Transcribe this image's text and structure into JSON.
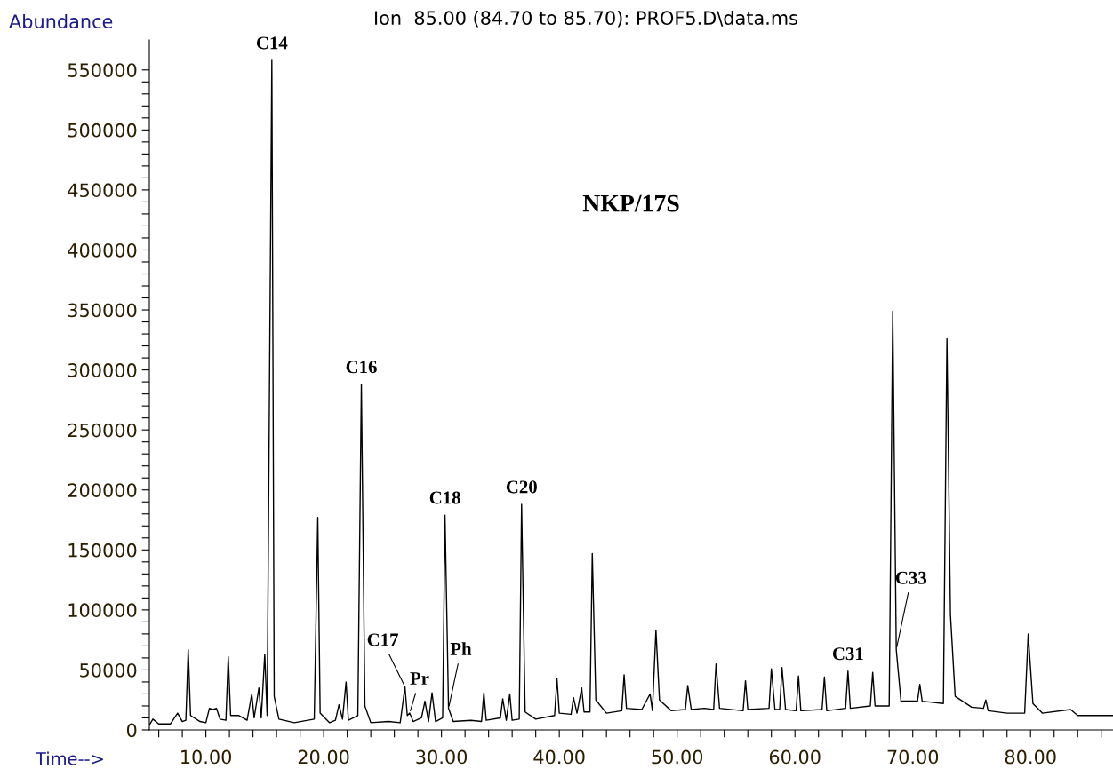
{
  "chart_data": {
    "type": "line",
    "title": "Ion  85.00 (84.70 to 85.70): PROF5.D\\data.ms",
    "xlabel": "Time-->",
    "ylabel": "Abundance",
    "annotations": [
      {
        "text": "C14",
        "x": 15.6,
        "y": 558000
      },
      {
        "text": "C16",
        "x": 23.2,
        "y": 288000
      },
      {
        "text": "C17",
        "x": 26.9,
        "y": 36000
      },
      {
        "text": "Pr",
        "x": 27.3,
        "y": 14000
      },
      {
        "text": "C18",
        "x": 30.3,
        "y": 179000
      },
      {
        "text": "Ph",
        "x": 30.6,
        "y": 18000
      },
      {
        "text": "C20",
        "x": 36.8,
        "y": 188000
      },
      {
        "text": "C31",
        "x": 64.5,
        "y": 49000
      },
      {
        "text": "C33",
        "x": 68.6,
        "y": 67000
      },
      "NKP/17S"
    ],
    "x": [
      5.2,
      5.5,
      6.0,
      7.0,
      7.6,
      8.0,
      8.3,
      8.5,
      8.7,
      9.5,
      10.0,
      10.3,
      10.6,
      10.9,
      11.2,
      11.7,
      11.9,
      12.1,
      12.8,
      13.5,
      13.9,
      14.1,
      14.5,
      14.7,
      15.0,
      15.2,
      15.6,
      15.8,
      16.2,
      17.5,
      19.2,
      19.5,
      19.7,
      20.5,
      21.0,
      21.3,
      21.6,
      21.9,
      22.1,
      22.9,
      23.2,
      23.5,
      24.0,
      25.5,
      26.5,
      26.9,
      27.1,
      27.3,
      27.6,
      28.3,
      28.6,
      28.9,
      29.2,
      29.5,
      30.1,
      30.3,
      30.6,
      31.0,
      32.5,
      33.4,
      33.6,
      33.8,
      35.0,
      35.2,
      35.5,
      35.8,
      36.0,
      36.6,
      36.8,
      37.1,
      38.0,
      39.6,
      39.8,
      40.0,
      41.0,
      41.2,
      41.5,
      41.9,
      42.1,
      42.6,
      42.8,
      43.1,
      44.0,
      45.3,
      45.5,
      45.7,
      47.0,
      47.7,
      47.9,
      48.2,
      48.5,
      49.5,
      50.7,
      50.9,
      51.2,
      52.3,
      53.1,
      53.3,
      53.6,
      55.6,
      55.8,
      56.0,
      57.8,
      58.0,
      58.3,
      58.7,
      58.9,
      59.2,
      60.1,
      60.3,
      60.5,
      62.3,
      62.5,
      62.7,
      64.3,
      64.5,
      64.7,
      66.4,
      66.6,
      66.8,
      68.0,
      68.3,
      68.6,
      69.0,
      70.4,
      70.6,
      70.8,
      72.6,
      72.9,
      73.2,
      73.6,
      75.0,
      76.0,
      76.2,
      76.4,
      78.0,
      79.5,
      79.8,
      80.2,
      81.0,
      83.4,
      84.0,
      87.0
    ],
    "series": [
      {
        "color": "#000000",
        "values": [
          4000,
          9000,
          5000,
          5000,
          14000,
          7000,
          8000,
          67000,
          12000,
          7000,
          6000,
          18000,
          17000,
          18000,
          9000,
          8000,
          61000,
          12000,
          12000,
          8000,
          30000,
          10000,
          35000,
          10000,
          63000,
          12000,
          558000,
          28000,
          9000,
          6000,
          9000,
          177000,
          14000,
          6000,
          8000,
          21000,
          9000,
          40000,
          8000,
          12000,
          288000,
          20000,
          6000,
          7000,
          6000,
          36000,
          12000,
          14000,
          7000,
          10000,
          24000,
          7000,
          31000,
          7000,
          10000,
          179000,
          18000,
          7000,
          8000,
          7000,
          31000,
          8000,
          10000,
          26000,
          8000,
          30000,
          8000,
          9000,
          188000,
          15000,
          9000,
          12000,
          43000,
          14000,
          13000,
          27000,
          14000,
          35000,
          15000,
          15000,
          147000,
          25000,
          14000,
          16000,
          46000,
          18000,
          17000,
          30000,
          16000,
          83000,
          25000,
          16000,
          17000,
          37000,
          17000,
          18000,
          17000,
          55000,
          18000,
          16000,
          41000,
          17000,
          18000,
          51000,
          17000,
          17000,
          52000,
          17000,
          16000,
          45000,
          16000,
          17000,
          44000,
          16000,
          18000,
          49000,
          18000,
          20000,
          48000,
          20000,
          20000,
          349000,
          67000,
          24000,
          24000,
          38000,
          24000,
          22000,
          326000,
          96000,
          28000,
          19000,
          18000,
          25000,
          16000,
          14000,
          14000,
          80000,
          22000,
          14000,
          17000,
          12000,
          12000
        ]
      }
    ],
    "xlim": [
      5.2,
      87
    ],
    "xticks": [
      {
        "value": 6,
        "label": null
      },
      {
        "value": 8,
        "label": null
      },
      {
        "value": 10,
        "label": "10.00"
      },
      {
        "value": 12,
        "label": null
      },
      {
        "value": 14,
        "label": null
      },
      {
        "value": 16,
        "label": null
      },
      {
        "value": 18,
        "label": null
      },
      {
        "value": 20,
        "label": "20.00"
      },
      {
        "value": 22,
        "label": null
      },
      {
        "value": 24,
        "label": null
      },
      {
        "value": 26,
        "label": null
      },
      {
        "value": 28,
        "label": null
      },
      {
        "value": 30,
        "label": "30.00"
      },
      {
        "value": 32,
        "label": null
      },
      {
        "value": 34,
        "label": null
      },
      {
        "value": 36,
        "label": null
      },
      {
        "value": 38,
        "label": null
      },
      {
        "value": 40,
        "label": "40.00"
      },
      {
        "value": 42,
        "label": null
      },
      {
        "value": 44,
        "label": null
      },
      {
        "value": 46,
        "label": null
      },
      {
        "value": 48,
        "label": null
      },
      {
        "value": 50,
        "label": "50.00"
      },
      {
        "value": 52,
        "label": null
      },
      {
        "value": 54,
        "label": null
      },
      {
        "value": 56,
        "label": null
      },
      {
        "value": 58,
        "label": null
      },
      {
        "value": 60,
        "label": "60.00"
      },
      {
        "value": 62,
        "label": null
      },
      {
        "value": 64,
        "label": null
      },
      {
        "value": 66,
        "label": null
      },
      {
        "value": 68,
        "label": null
      },
      {
        "value": 70,
        "label": "70.00"
      },
      {
        "value": 72,
        "label": null
      },
      {
        "value": 74,
        "label": null
      },
      {
        "value": 76,
        "label": null
      },
      {
        "value": 78,
        "label": null
      },
      {
        "value": 80,
        "label": "80.00"
      },
      {
        "value": 82,
        "label": null
      },
      {
        "value": 84,
        "label": null
      },
      {
        "value": 86,
        "label": null
      }
    ],
    "ylim": [
      0,
      575000
    ],
    "yticks": [
      0,
      {
        "value": 10000,
        "label": null
      },
      {
        "value": 20000,
        "label": null
      },
      {
        "value": 30000,
        "label": null
      },
      {
        "value": 40000,
        "label": null
      },
      50000,
      {
        "value": 60000,
        "label": null
      },
      {
        "value": 70000,
        "label": null
      },
      {
        "value": 80000,
        "label": null
      },
      {
        "value": 90000,
        "label": null
      },
      100000,
      {
        "value": 110000,
        "label": null
      },
      {
        "value": 120000,
        "label": null
      },
      {
        "value": 130000,
        "label": null
      },
      {
        "value": 140000,
        "label": null
      },
      150000,
      {
        "value": 160000,
        "label": null
      },
      {
        "value": 170000,
        "label": null
      },
      {
        "value": 180000,
        "label": null
      },
      {
        "value": 190000,
        "label": null
      },
      200000,
      {
        "value": 210000,
        "label": null
      },
      {
        "value": 220000,
        "label": null
      },
      {
        "value": 230000,
        "label": null
      },
      {
        "value": 240000,
        "label": null
      },
      250000,
      {
        "value": 260000,
        "label": null
      },
      {
        "value": 270000,
        "label": null
      },
      {
        "value": 280000,
        "label": null
      },
      {
        "value": 290000,
        "label": null
      },
      300000,
      {
        "value": 310000,
        "label": null
      },
      {
        "value": 320000,
        "label": null
      },
      {
        "value": 330000,
        "label": null
      },
      {
        "value": 340000,
        "label": null
      },
      350000,
      {
        "value": 360000,
        "label": null
      },
      {
        "value": 370000,
        "label": null
      },
      {
        "value": 380000,
        "label": null
      },
      {
        "value": 390000,
        "label": null
      },
      400000,
      {
        "value": 410000,
        "label": null
      },
      {
        "value": 420000,
        "label": null
      },
      {
        "value": 430000,
        "label": null
      },
      {
        "value": 440000,
        "label": null
      },
      450000,
      {
        "value": 460000,
        "label": null
      },
      {
        "value": 470000,
        "label": null
      },
      {
        "value": 480000,
        "label": null
      },
      {
        "value": 490000,
        "label": null
      },
      500000,
      {
        "value": 510000,
        "label": null
      },
      {
        "value": 520000,
        "label": null
      },
      {
        "value": 530000,
        "label": null
      },
      {
        "value": 540000,
        "label": null
      },
      550000
    ],
    "grid": false,
    "legend": false,
    "marker": "none",
    "line_style": "solid"
  }
}
